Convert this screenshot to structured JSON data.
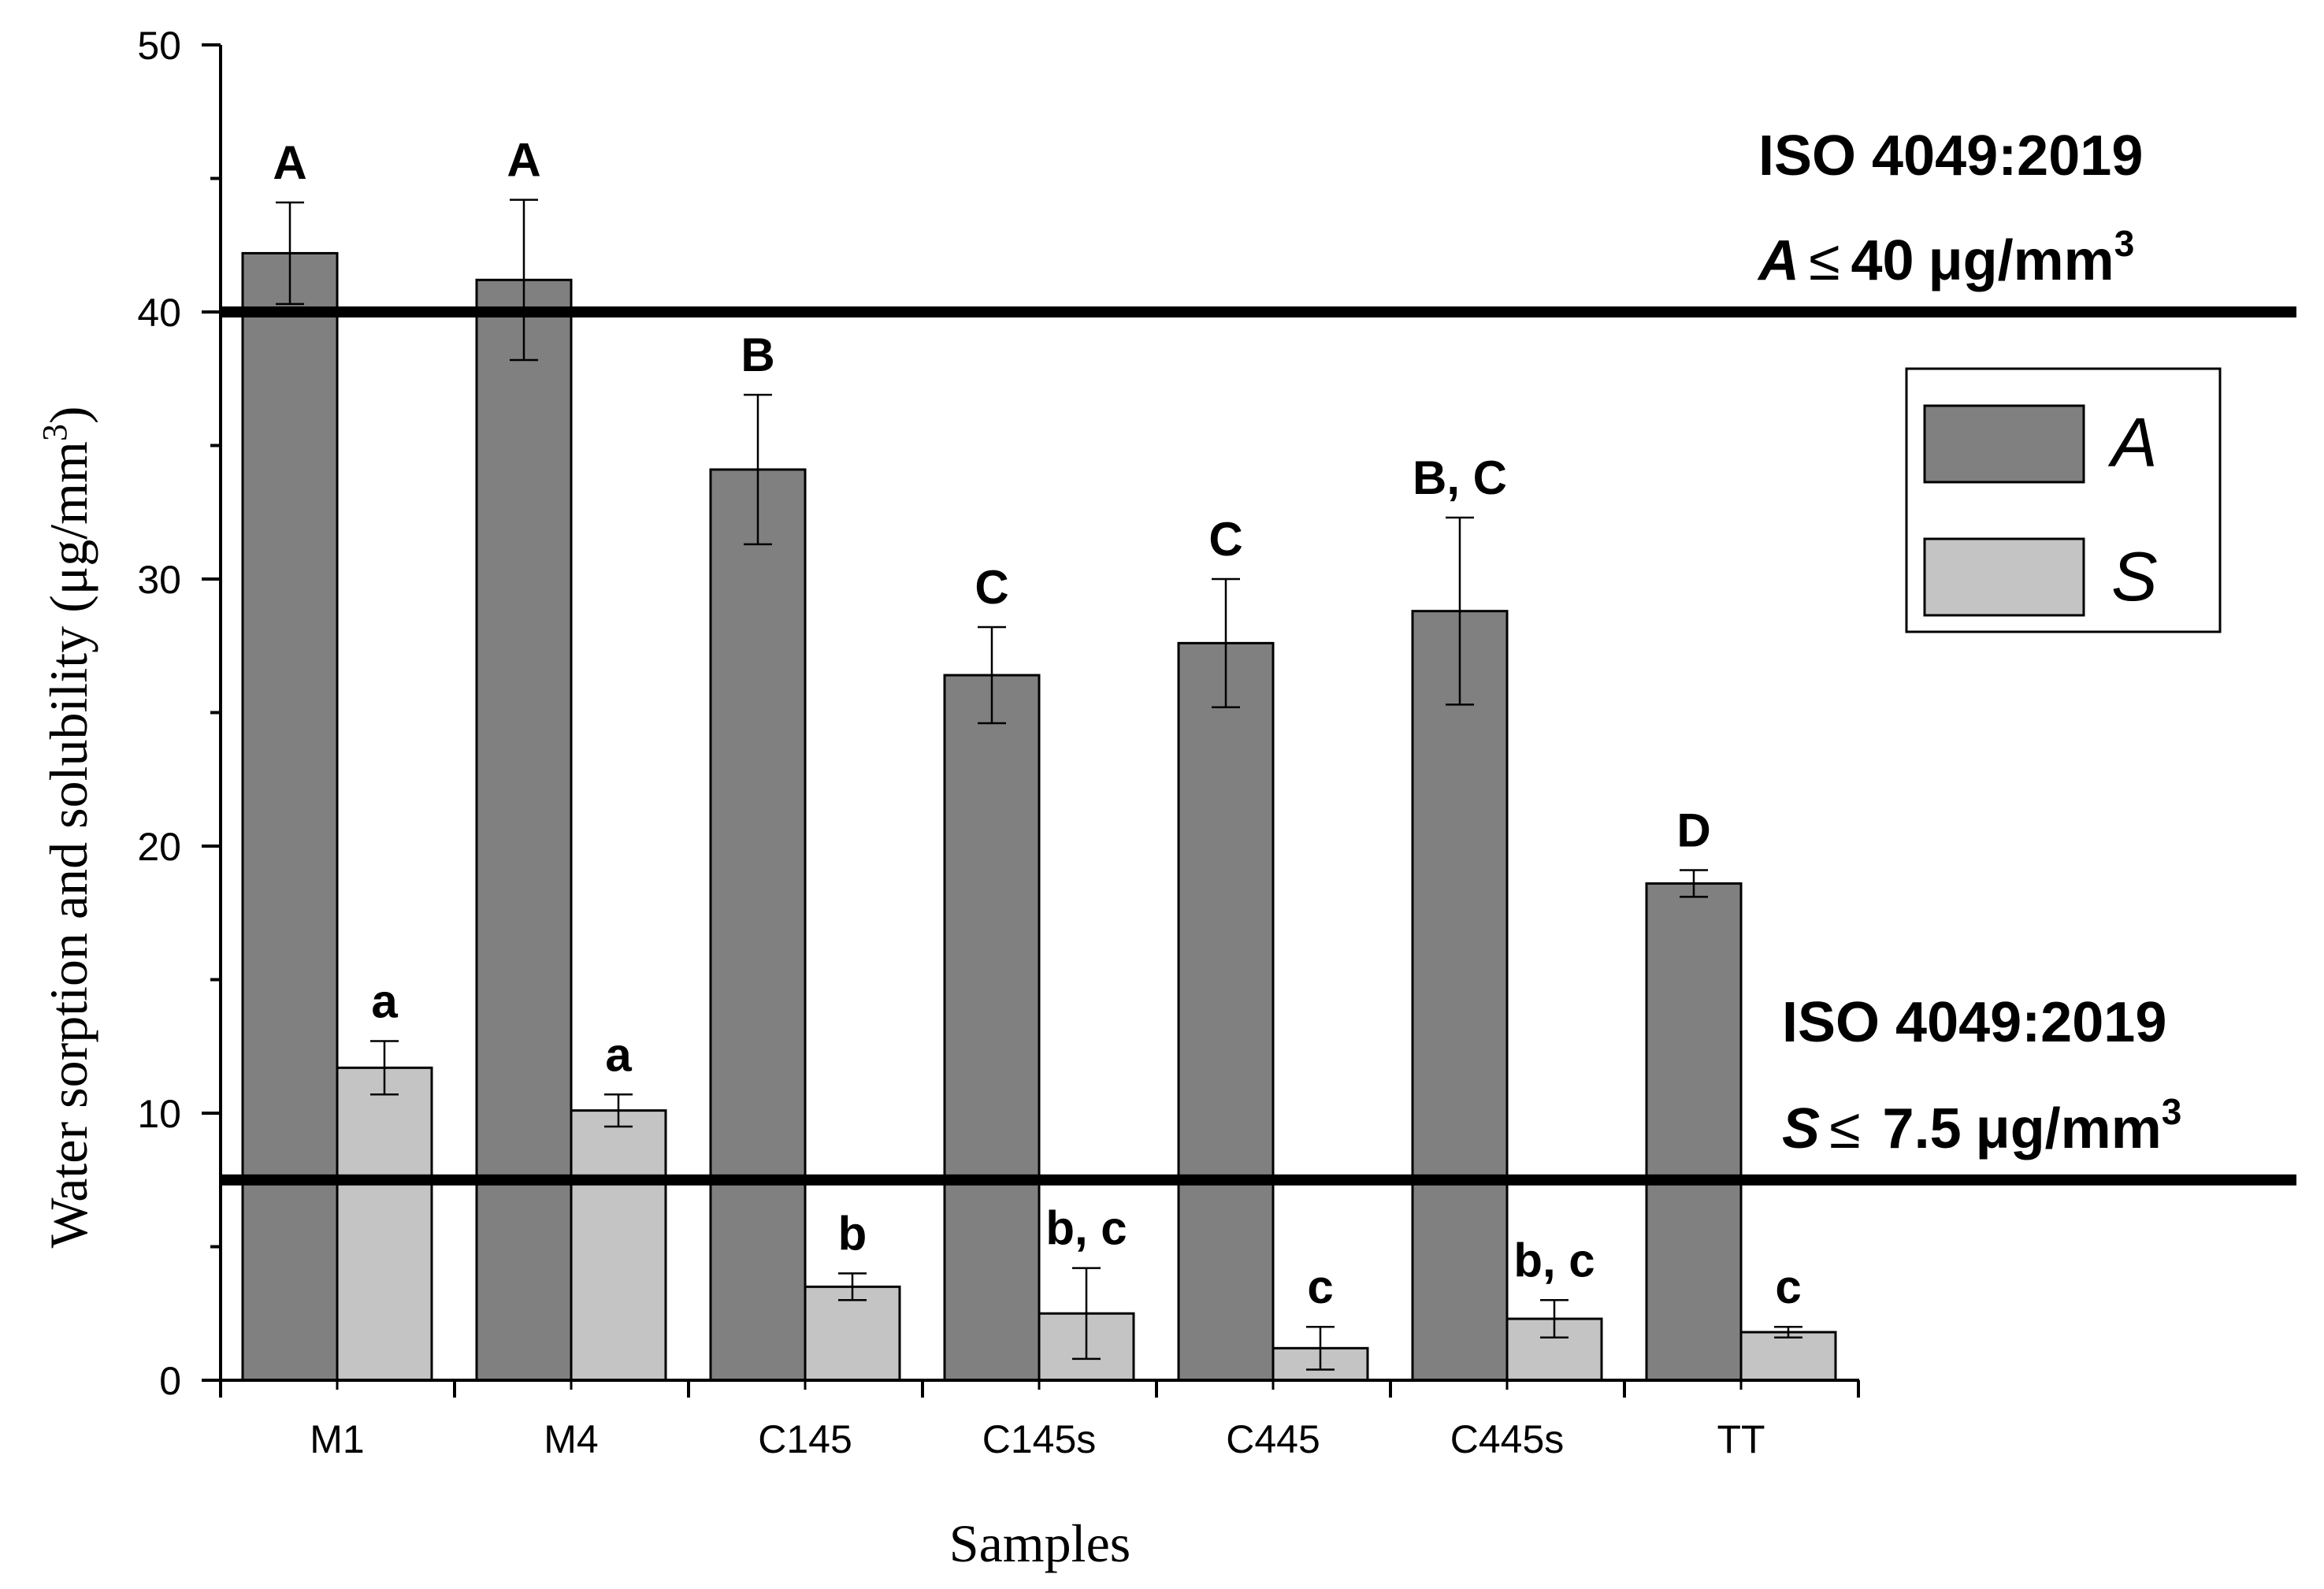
{
  "chart_data": {
    "type": "bar",
    "title": "",
    "xlabel": "Samples",
    "ylabel": "Water sorption and solubility (μg/mm3)",
    "ylim": [
      0,
      50
    ],
    "yticks": [
      0,
      10,
      20,
      30,
      40,
      50
    ],
    "grid": false,
    "legend_position": "top-right",
    "categories": [
      "M1",
      "M4",
      "C145",
      "C145s",
      "C445",
      "C445s",
      "TT"
    ],
    "series": [
      {
        "name": "A",
        "color": "#808080",
        "values": [
          42.2,
          41.2,
          34.1,
          26.4,
          27.6,
          28.8,
          18.6
        ],
        "errors": [
          1.9,
          3.0,
          2.8,
          1.8,
          2.4,
          3.5,
          0.5
        ],
        "labels": [
          "A",
          "A",
          "B",
          "C",
          "C",
          "B, C",
          "D"
        ]
      },
      {
        "name": "S",
        "color": "#c4c4c4",
        "values": [
          11.7,
          10.1,
          3.5,
          2.5,
          1.2,
          2.3,
          1.8
        ],
        "errors": [
          1.0,
          0.6,
          0.5,
          1.7,
          0.8,
          0.7,
          0.2
        ],
        "labels": [
          "a",
          "a",
          "b",
          "b, c",
          "c",
          "b, c",
          "c"
        ]
      }
    ],
    "thresholds": [
      {
        "series": "A",
        "value": 40,
        "standard": "ISO 4049:2019",
        "symbol": "A",
        "relation": "≤",
        "amount": "40",
        "unit": "μg/mm",
        "exponent": "3"
      },
      {
        "series": "S",
        "value": 7.5,
        "standard": "ISO 4049:2019",
        "symbol": "S",
        "relation": "≤",
        "amount": "7.5",
        "unit": "μg/mm",
        "exponent": "3"
      }
    ]
  }
}
